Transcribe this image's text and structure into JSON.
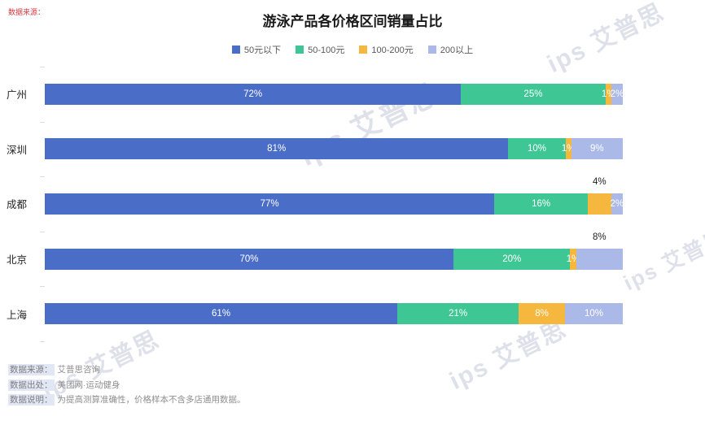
{
  "title": "游泳产品各价格区间销量占比",
  "corner_note": "数据来源：",
  "watermark": "ips 艾普思",
  "legend": [
    {
      "label": "50元以下",
      "color": "#4a6dc7"
    },
    {
      "label": "50-100元",
      "color": "#3ec795"
    },
    {
      "label": "100-200元",
      "color": "#f6b73e"
    },
    {
      "label": "200以上",
      "color": "#abb9e9"
    }
  ],
  "chart_data": {
    "type": "bar",
    "orientation": "horizontal",
    "stacked": true,
    "unit": "%",
    "title": "游泳产品各价格区间销量占比",
    "categories": [
      "广州",
      "深圳",
      "成都",
      "北京",
      "上海"
    ],
    "series": [
      {
        "name": "50元以下",
        "color": "#4a6dc7",
        "values": [
          72,
          81,
          77,
          70,
          61
        ]
      },
      {
        "name": "50-100元",
        "color": "#3ec795",
        "values": [
          25,
          10,
          16,
          20,
          21
        ]
      },
      {
        "name": "100-200元",
        "color": "#f6b73e",
        "values": [
          1,
          1,
          4,
          1,
          8
        ]
      },
      {
        "name": "200以上",
        "color": "#abb9e9",
        "values": [
          2,
          9,
          2,
          8,
          10
        ]
      }
    ],
    "outside_labels": [
      {
        "category": "成都",
        "series": "100-200元",
        "text": "4%"
      },
      {
        "category": "北京",
        "series": "200以上",
        "text": "8%"
      }
    ],
    "legend_position": "top",
    "grid": false
  },
  "footnotes": [
    {
      "label": "数据来源：",
      "text": "艾普思咨询"
    },
    {
      "label": "数据出处：",
      "text": "美团网·运动健身"
    },
    {
      "label": "数据说明：",
      "text": "为提高测算准确性，价格样本不含多店通用数据。"
    }
  ]
}
